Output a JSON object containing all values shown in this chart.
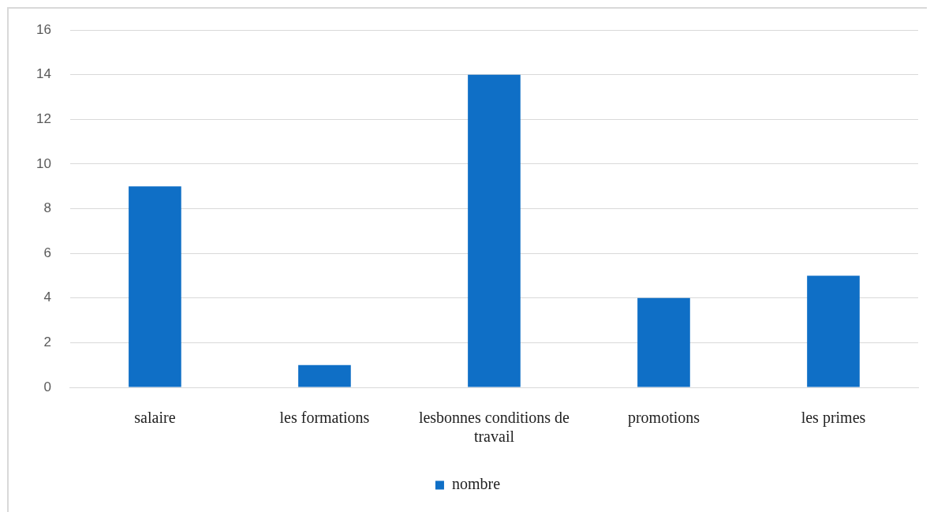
{
  "chart_data": {
    "type": "bar",
    "categories": [
      "salaire",
      "les formations",
      "lesbonnes conditions de travail",
      "promotions",
      "les primes"
    ],
    "series": [
      {
        "name": "nombre",
        "color": "#0f6fc6",
        "values": [
          9,
          1,
          14,
          4,
          5
        ]
      }
    ],
    "ylim": [
      0,
      16
    ],
    "yticks": [
      0,
      2,
      4,
      6,
      8,
      10,
      12,
      14,
      16
    ],
    "grid": "y",
    "legend": "bottom"
  }
}
